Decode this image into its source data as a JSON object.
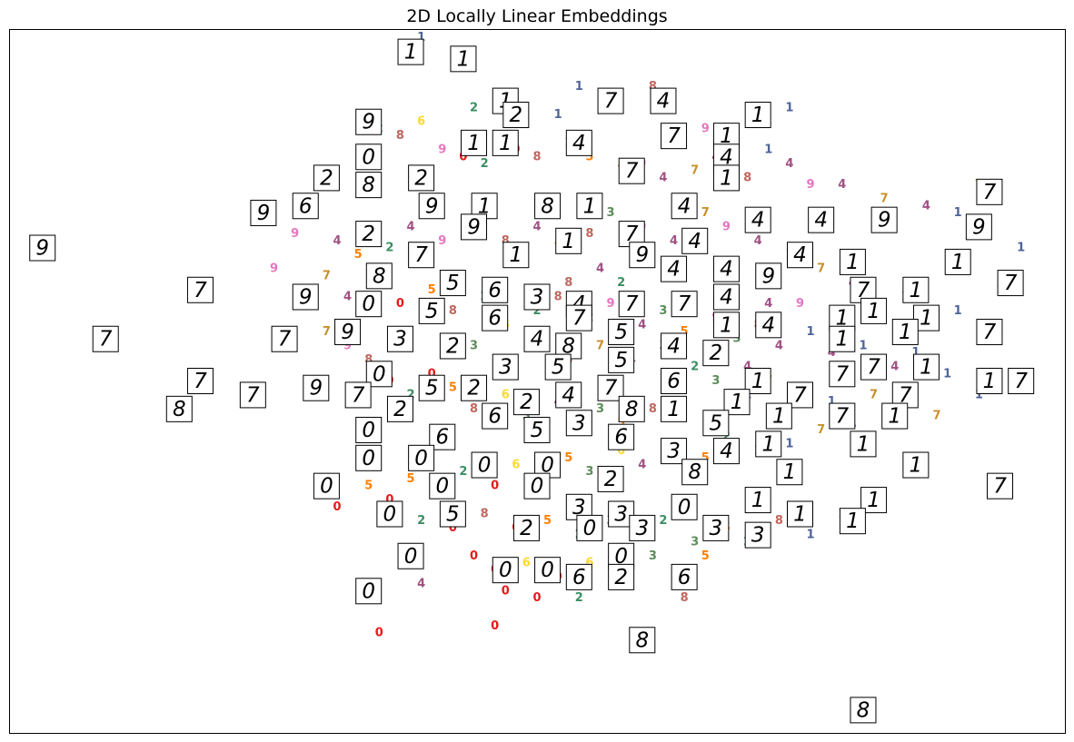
{
  "chart_data": {
    "type": "scatter",
    "title": "2D Locally Linear Embeddings",
    "xlabel": "",
    "ylabel": "",
    "xlim": [
      0,
      1
    ],
    "ylim": [
      0,
      1
    ],
    "axes_visible": false,
    "ticks": "none",
    "marker": "digit-text",
    "palette": {
      "0": "#e41a1c",
      "1": "#4e6397",
      "2": "#3b8e62",
      "3": "#5b8c5a",
      "4": "#a05183",
      "5": "#ff7f00",
      "6": "#ffd92f",
      "7": "#c8902a",
      "8": "#c0675f",
      "9": "#e377c2"
    },
    "points": [
      [
        0.39,
        0.99,
        "1"
      ],
      [
        0.61,
        0.92,
        "8"
      ],
      [
        0.54,
        0.92,
        "1"
      ],
      [
        0.44,
        0.89,
        "2"
      ],
      [
        0.52,
        0.88,
        "1"
      ],
      [
        0.66,
        0.86,
        "9"
      ],
      [
        0.74,
        0.89,
        "1"
      ],
      [
        0.39,
        0.87,
        "6"
      ],
      [
        0.35,
        0.86,
        "2"
      ],
      [
        0.37,
        0.85,
        "8"
      ],
      [
        0.41,
        0.83,
        "9"
      ],
      [
        0.43,
        0.82,
        "0"
      ],
      [
        0.45,
        0.81,
        "2"
      ],
      [
        0.48,
        0.83,
        "0"
      ],
      [
        0.5,
        0.82,
        "8"
      ],
      [
        0.53,
        0.84,
        "1"
      ],
      [
        0.55,
        0.82,
        "5"
      ],
      [
        0.58,
        0.8,
        "7"
      ],
      [
        0.6,
        0.81,
        "9"
      ],
      [
        0.62,
        0.79,
        "4"
      ],
      [
        0.65,
        0.8,
        "7"
      ],
      [
        0.67,
        0.82,
        "4"
      ],
      [
        0.7,
        0.79,
        "8"
      ],
      [
        0.72,
        0.83,
        "1"
      ],
      [
        0.74,
        0.81,
        "4"
      ],
      [
        0.76,
        0.78,
        "9"
      ],
      [
        0.79,
        0.78,
        "4"
      ],
      [
        0.83,
        0.76,
        "7"
      ],
      [
        0.87,
        0.75,
        "4"
      ],
      [
        0.9,
        0.74,
        "1"
      ],
      [
        0.92,
        0.78,
        "7"
      ],
      [
        0.96,
        0.69,
        "1"
      ],
      [
        0.94,
        0.63,
        "1"
      ],
      [
        0.9,
        0.6,
        "1"
      ],
      [
        0.85,
        0.62,
        "1"
      ],
      [
        0.8,
        0.64,
        "4"
      ],
      [
        0.77,
        0.66,
        "7"
      ],
      [
        0.74,
        0.68,
        "1"
      ],
      [
        0.71,
        0.7,
        "4"
      ],
      [
        0.68,
        0.72,
        "9"
      ],
      [
        0.66,
        0.74,
        "7"
      ],
      [
        0.63,
        0.7,
        "4"
      ],
      [
        0.6,
        0.72,
        "9"
      ],
      [
        0.57,
        0.74,
        "3"
      ],
      [
        0.55,
        0.71,
        "8"
      ],
      [
        0.52,
        0.69,
        "7"
      ],
      [
        0.5,
        0.72,
        "4"
      ],
      [
        0.47,
        0.7,
        "8"
      ],
      [
        0.44,
        0.72,
        "3"
      ],
      [
        0.41,
        0.7,
        "9"
      ],
      [
        0.38,
        0.72,
        "4"
      ],
      [
        0.36,
        0.69,
        "2"
      ],
      [
        0.33,
        0.68,
        "5"
      ],
      [
        0.31,
        0.7,
        "4"
      ],
      [
        0.27,
        0.71,
        "9"
      ],
      [
        0.25,
        0.66,
        "9"
      ],
      [
        0.3,
        0.65,
        "7"
      ],
      [
        0.32,
        0.62,
        "4"
      ],
      [
        0.35,
        0.64,
        "3"
      ],
      [
        0.37,
        0.61,
        "0"
      ],
      [
        0.4,
        0.63,
        "5"
      ],
      [
        0.42,
        0.6,
        "8"
      ],
      [
        0.45,
        0.62,
        "2"
      ],
      [
        0.47,
        0.58,
        "6"
      ],
      [
        0.5,
        0.6,
        "2"
      ],
      [
        0.52,
        0.62,
        "8"
      ],
      [
        0.55,
        0.59,
        "2"
      ],
      [
        0.57,
        0.61,
        "9"
      ],
      [
        0.6,
        0.58,
        "4"
      ],
      [
        0.62,
        0.6,
        "3"
      ],
      [
        0.64,
        0.57,
        "5"
      ],
      [
        0.67,
        0.59,
        "9"
      ],
      [
        0.69,
        0.56,
        "3"
      ],
      [
        0.71,
        0.58,
        "8"
      ],
      [
        0.73,
        0.55,
        "4"
      ],
      [
        0.76,
        0.57,
        "1"
      ],
      [
        0.78,
        0.54,
        "4"
      ],
      [
        0.81,
        0.55,
        "1"
      ],
      [
        0.84,
        0.52,
        "4"
      ],
      [
        0.86,
        0.54,
        "1"
      ],
      [
        0.89,
        0.51,
        "1"
      ],
      [
        0.92,
        0.48,
        "1"
      ],
      [
        0.88,
        0.45,
        "7"
      ],
      [
        0.84,
        0.46,
        "1"
      ],
      [
        0.8,
        0.44,
        "1"
      ],
      [
        0.77,
        0.43,
        "7"
      ],
      [
        0.74,
        0.41,
        "1"
      ],
      [
        0.71,
        0.4,
        "1"
      ],
      [
        0.68,
        0.42,
        "2"
      ],
      [
        0.66,
        0.39,
        "5"
      ],
      [
        0.63,
        0.41,
        "3"
      ],
      [
        0.6,
        0.38,
        "4"
      ],
      [
        0.58,
        0.4,
        "6"
      ],
      [
        0.55,
        0.37,
        "3"
      ],
      [
        0.53,
        0.39,
        "5"
      ],
      [
        0.5,
        0.36,
        "2"
      ],
      [
        0.48,
        0.38,
        "6"
      ],
      [
        0.46,
        0.35,
        "0"
      ],
      [
        0.43,
        0.37,
        "2"
      ],
      [
        0.41,
        0.34,
        "0"
      ],
      [
        0.38,
        0.36,
        "5"
      ],
      [
        0.36,
        0.33,
        "0"
      ],
      [
        0.34,
        0.35,
        "5"
      ],
      [
        0.31,
        0.32,
        "0"
      ],
      [
        0.39,
        0.3,
        "2"
      ],
      [
        0.42,
        0.29,
        "0"
      ],
      [
        0.45,
        0.31,
        "8"
      ],
      [
        0.48,
        0.29,
        "0"
      ],
      [
        0.51,
        0.3,
        "5"
      ],
      [
        0.54,
        0.28,
        "2"
      ],
      [
        0.57,
        0.3,
        "3"
      ],
      [
        0.6,
        0.28,
        "8"
      ],
      [
        0.62,
        0.3,
        "2"
      ],
      [
        0.65,
        0.27,
        "3"
      ],
      [
        0.68,
        0.29,
        "5"
      ],
      [
        0.7,
        0.27,
        "2"
      ],
      [
        0.73,
        0.3,
        "8"
      ],
      [
        0.76,
        0.28,
        "1"
      ],
      [
        0.79,
        0.31,
        "1"
      ],
      [
        0.44,
        0.25,
        "0"
      ],
      [
        0.46,
        0.23,
        "0"
      ],
      [
        0.49,
        0.24,
        "6"
      ],
      [
        0.52,
        0.22,
        "0"
      ],
      [
        0.55,
        0.24,
        "6"
      ],
      [
        0.58,
        0.22,
        "3"
      ],
      [
        0.61,
        0.25,
        "3"
      ],
      [
        0.64,
        0.23,
        "0"
      ],
      [
        0.66,
        0.25,
        "5"
      ],
      [
        0.39,
        0.21,
        "4"
      ],
      [
        0.47,
        0.2,
        "0"
      ],
      [
        0.5,
        0.19,
        "0"
      ],
      [
        0.54,
        0.19,
        "2"
      ],
      [
        0.64,
        0.19,
        "8"
      ],
      [
        0.35,
        0.14,
        "0"
      ],
      [
        0.46,
        0.15,
        "0"
      ],
      [
        0.72,
        0.61,
        "4"
      ],
      [
        0.75,
        0.61,
        "9"
      ],
      [
        0.7,
        0.48,
        "1"
      ],
      [
        0.78,
        0.47,
        "1"
      ],
      [
        0.82,
        0.48,
        "7"
      ],
      [
        0.56,
        0.46,
        "3"
      ],
      [
        0.58,
        0.44,
        "5"
      ],
      [
        0.61,
        0.46,
        "8"
      ],
      [
        0.52,
        0.47,
        "4"
      ],
      [
        0.49,
        0.45,
        "3"
      ],
      [
        0.47,
        0.48,
        "6"
      ],
      [
        0.44,
        0.46,
        "8"
      ],
      [
        0.42,
        0.49,
        "5"
      ],
      [
        0.4,
        0.51,
        "0"
      ],
      [
        0.38,
        0.48,
        "2"
      ],
      [
        0.36,
        0.5,
        "0"
      ],
      [
        0.34,
        0.53,
        "8"
      ],
      [
        0.32,
        0.55,
        "9"
      ],
      [
        0.3,
        0.57,
        "7"
      ],
      [
        0.44,
        0.55,
        "3"
      ],
      [
        0.47,
        0.53,
        "5"
      ],
      [
        0.5,
        0.55,
        "6"
      ],
      [
        0.53,
        0.53,
        "8"
      ],
      [
        0.56,
        0.55,
        "7"
      ],
      [
        0.59,
        0.53,
        "4"
      ],
      [
        0.62,
        0.55,
        "3"
      ],
      [
        0.65,
        0.52,
        "2"
      ],
      [
        0.67,
        0.5,
        "3"
      ],
      [
        0.7,
        0.52,
        "4"
      ],
      [
        0.72,
        0.5,
        "7"
      ],
      [
        0.53,
        0.64,
        "8"
      ],
      [
        0.56,
        0.66,
        "4"
      ],
      [
        0.58,
        0.64,
        "2"
      ]
    ],
    "thumbnails": [
      [
        0.38,
        0.97,
        "1"
      ],
      [
        0.43,
        0.96,
        "1"
      ],
      [
        0.47,
        0.9,
        "1"
      ],
      [
        0.48,
        0.88,
        "2"
      ],
      [
        0.57,
        0.9,
        "7"
      ],
      [
        0.62,
        0.9,
        "4"
      ],
      [
        0.71,
        0.88,
        "1"
      ],
      [
        0.34,
        0.87,
        "9"
      ],
      [
        0.34,
        0.82,
        "0"
      ],
      [
        0.44,
        0.84,
        "1"
      ],
      [
        0.47,
        0.84,
        "1"
      ],
      [
        0.54,
        0.84,
        "4"
      ],
      [
        0.63,
        0.85,
        "7"
      ],
      [
        0.68,
        0.85,
        "1"
      ],
      [
        0.3,
        0.79,
        "2"
      ],
      [
        0.39,
        0.79,
        "2"
      ],
      [
        0.34,
        0.78,
        "8"
      ],
      [
        0.59,
        0.8,
        "7"
      ],
      [
        0.68,
        0.82,
        "4"
      ],
      [
        0.68,
        0.79,
        "1"
      ],
      [
        0.93,
        0.77,
        "7"
      ],
      [
        0.28,
        0.75,
        "6"
      ],
      [
        0.24,
        0.74,
        "9"
      ],
      [
        0.4,
        0.75,
        "9"
      ],
      [
        0.45,
        0.75,
        "1"
      ],
      [
        0.51,
        0.75,
        "8"
      ],
      [
        0.55,
        0.75,
        "1"
      ],
      [
        0.64,
        0.75,
        "4"
      ],
      [
        0.71,
        0.73,
        "4"
      ],
      [
        0.77,
        0.73,
        "4"
      ],
      [
        0.83,
        0.73,
        "9"
      ],
      [
        0.34,
        0.71,
        "2"
      ],
      [
        0.44,
        0.72,
        "9"
      ],
      [
        0.48,
        0.68,
        "1"
      ],
      [
        0.53,
        0.7,
        "1"
      ],
      [
        0.59,
        0.71,
        "7"
      ],
      [
        0.65,
        0.7,
        "4"
      ],
      [
        0.75,
        0.68,
        "4"
      ],
      [
        0.8,
        0.67,
        "1"
      ],
      [
        0.92,
        0.72,
        "9"
      ],
      [
        0.03,
        0.69,
        "9"
      ],
      [
        0.39,
        0.68,
        "7"
      ],
      [
        0.6,
        0.68,
        "9"
      ],
      [
        0.63,
        0.66,
        "4"
      ],
      [
        0.68,
        0.66,
        "4"
      ],
      [
        0.72,
        0.65,
        "9"
      ],
      [
        0.81,
        0.63,
        "7"
      ],
      [
        0.86,
        0.63,
        "1"
      ],
      [
        0.9,
        0.67,
        "1"
      ],
      [
        0.18,
        0.63,
        "7"
      ],
      [
        0.35,
        0.65,
        "8"
      ],
      [
        0.42,
        0.64,
        "5"
      ],
      [
        0.46,
        0.63,
        "6"
      ],
      [
        0.5,
        0.62,
        "3"
      ],
      [
        0.54,
        0.61,
        "4"
      ],
      [
        0.59,
        0.61,
        "7"
      ],
      [
        0.64,
        0.61,
        "7"
      ],
      [
        0.68,
        0.62,
        "4"
      ],
      [
        0.95,
        0.64,
        "7"
      ],
      [
        0.28,
        0.62,
        "9"
      ],
      [
        0.34,
        0.61,
        "0"
      ],
      [
        0.4,
        0.6,
        "5"
      ],
      [
        0.46,
        0.59,
        "6"
      ],
      [
        0.54,
        0.59,
        "7"
      ],
      [
        0.79,
        0.59,
        "1"
      ],
      [
        0.82,
        0.6,
        "1"
      ],
      [
        0.87,
        0.59,
        "1"
      ],
      [
        0.32,
        0.57,
        "9"
      ],
      [
        0.26,
        0.56,
        "7"
      ],
      [
        0.37,
        0.56,
        "3"
      ],
      [
        0.42,
        0.55,
        "2"
      ],
      [
        0.5,
        0.56,
        "4"
      ],
      [
        0.53,
        0.55,
        "8"
      ],
      [
        0.58,
        0.57,
        "5"
      ],
      [
        0.63,
        0.55,
        "4"
      ],
      [
        0.68,
        0.58,
        "1"
      ],
      [
        0.72,
        0.58,
        "4"
      ],
      [
        0.79,
        0.56,
        "1"
      ],
      [
        0.85,
        0.57,
        "1"
      ],
      [
        0.93,
        0.57,
        "7"
      ],
      [
        0.09,
        0.56,
        "7"
      ],
      [
        0.35,
        0.51,
        "0"
      ],
      [
        0.47,
        0.52,
        "3"
      ],
      [
        0.52,
        0.52,
        "5"
      ],
      [
        0.58,
        0.53,
        "5"
      ],
      [
        0.67,
        0.54,
        "2"
      ],
      [
        0.71,
        0.5,
        "1"
      ],
      [
        0.79,
        0.51,
        "7"
      ],
      [
        0.82,
        0.52,
        "7"
      ],
      [
        0.87,
        0.52,
        "1"
      ],
      [
        0.93,
        0.5,
        "1"
      ],
      [
        0.18,
        0.5,
        "7"
      ],
      [
        0.44,
        0.49,
        "2"
      ],
      [
        0.49,
        0.47,
        "2"
      ],
      [
        0.53,
        0.48,
        "4"
      ],
      [
        0.57,
        0.49,
        "7"
      ],
      [
        0.63,
        0.5,
        "6"
      ],
      [
        0.69,
        0.47,
        "1"
      ],
      [
        0.75,
        0.48,
        "7"
      ],
      [
        0.79,
        0.45,
        "7"
      ],
      [
        0.85,
        0.48,
        "7"
      ],
      [
        0.96,
        0.5,
        "7"
      ],
      [
        0.29,
        0.49,
        "9"
      ],
      [
        0.33,
        0.48,
        "7"
      ],
      [
        0.4,
        0.49,
        "5"
      ],
      [
        0.23,
        0.48,
        "7"
      ],
      [
        0.16,
        0.46,
        "8"
      ],
      [
        0.37,
        0.46,
        "2"
      ],
      [
        0.46,
        0.45,
        "6"
      ],
      [
        0.5,
        0.43,
        "5"
      ],
      [
        0.54,
        0.44,
        "3"
      ],
      [
        0.59,
        0.46,
        "8"
      ],
      [
        0.63,
        0.46,
        "1"
      ],
      [
        0.67,
        0.44,
        "5"
      ],
      [
        0.73,
        0.45,
        "1"
      ],
      [
        0.84,
        0.45,
        "1"
      ],
      [
        0.34,
        0.43,
        "0"
      ],
      [
        0.41,
        0.42,
        "6"
      ],
      [
        0.58,
        0.42,
        "6"
      ],
      [
        0.63,
        0.4,
        "3"
      ],
      [
        0.68,
        0.4,
        "4"
      ],
      [
        0.72,
        0.41,
        "1"
      ],
      [
        0.81,
        0.41,
        "1"
      ],
      [
        0.34,
        0.39,
        "0"
      ],
      [
        0.39,
        0.39,
        "0"
      ],
      [
        0.45,
        0.38,
        "0"
      ],
      [
        0.51,
        0.38,
        "0"
      ],
      [
        0.65,
        0.37,
        "8"
      ],
      [
        0.57,
        0.36,
        "2"
      ],
      [
        0.74,
        0.37,
        "1"
      ],
      [
        0.86,
        0.38,
        "1"
      ],
      [
        0.3,
        0.35,
        "0"
      ],
      [
        0.41,
        0.35,
        "0"
      ],
      [
        0.5,
        0.35,
        "0"
      ],
      [
        0.71,
        0.33,
        "1"
      ],
      [
        0.82,
        0.33,
        "1"
      ],
      [
        0.94,
        0.35,
        "7"
      ],
      [
        0.54,
        0.32,
        "3"
      ],
      [
        0.58,
        0.31,
        "3"
      ],
      [
        0.64,
        0.32,
        "0"
      ],
      [
        0.36,
        0.31,
        "0"
      ],
      [
        0.42,
        0.31,
        "5"
      ],
      [
        0.75,
        0.31,
        "1"
      ],
      [
        0.8,
        0.3,
        "1"
      ],
      [
        0.49,
        0.29,
        "2"
      ],
      [
        0.55,
        0.29,
        "0"
      ],
      [
        0.6,
        0.29,
        "3"
      ],
      [
        0.67,
        0.29,
        "3"
      ],
      [
        0.71,
        0.28,
        "3"
      ],
      [
        0.58,
        0.25,
        "0"
      ],
      [
        0.38,
        0.25,
        "0"
      ],
      [
        0.47,
        0.23,
        "0"
      ],
      [
        0.51,
        0.23,
        "0"
      ],
      [
        0.54,
        0.22,
        "6"
      ],
      [
        0.58,
        0.22,
        "2"
      ],
      [
        0.64,
        0.22,
        "6"
      ],
      [
        0.34,
        0.2,
        "0"
      ],
      [
        0.6,
        0.13,
        "8"
      ],
      [
        0.81,
        0.03,
        "8"
      ]
    ]
  }
}
